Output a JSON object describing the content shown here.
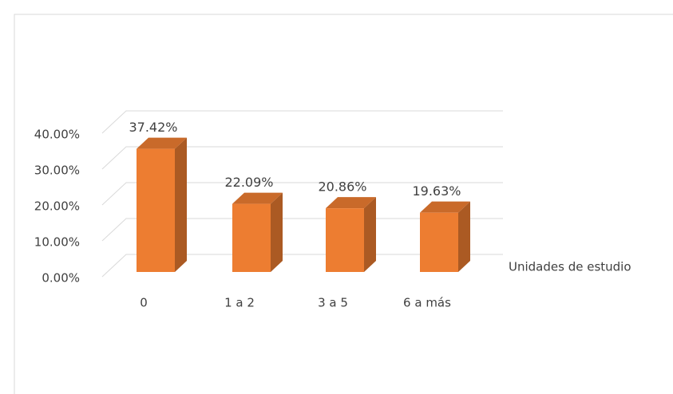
{
  "chart_data": {
    "type": "bar3d",
    "x_label": "Unidades de estudio",
    "categories": [
      "0",
      "1 a 2",
      "3 a 5",
      "6 a más"
    ],
    "values": [
      37.42,
      22.09,
      20.86,
      19.63
    ],
    "value_labels": [
      "37.42%",
      "22.09%",
      "20.86%",
      "19.63%"
    ],
    "color": "#ed7d31",
    "ylim": [
      0,
      40
    ],
    "yticks": [
      {
        "value": 0,
        "label": "0.00%"
      },
      {
        "value": 10,
        "label": "10.00%"
      },
      {
        "value": 20,
        "label": "20.00%"
      },
      {
        "value": 30,
        "label": "30.00%"
      },
      {
        "value": 40,
        "label": "40.00%"
      }
    ],
    "grid": true
  }
}
